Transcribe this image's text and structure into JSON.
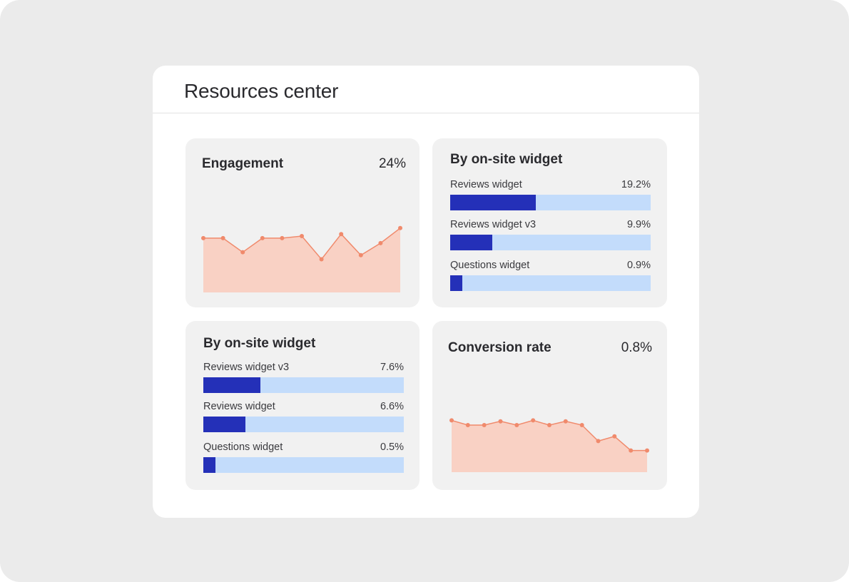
{
  "panel": {
    "title": "Resources center"
  },
  "engagement": {
    "title": "Engagement",
    "value": "24%",
    "chart_data": {
      "type": "area",
      "x": [
        0,
        1,
        2,
        3,
        4,
        5,
        6,
        7,
        8,
        9,
        10
      ],
      "values": [
        54,
        54,
        40,
        54,
        54,
        56,
        33,
        58,
        37,
        49,
        64
      ],
      "ylim": [
        0,
        100
      ],
      "grid": false,
      "colors": {
        "line": "#f08a6c",
        "fill": "#f9d1c4"
      }
    }
  },
  "widgets_top": {
    "title": "By on-site widget",
    "rows": [
      {
        "label": "Reviews widget",
        "pct_text": "19.2%",
        "fill": 0.427
      },
      {
        "label": "Reviews widget v3",
        "pct_text": "9.9%",
        "fill": 0.21
      },
      {
        "label": "Questions widget",
        "pct_text": "0.9%",
        "fill": 0.06
      }
    ]
  },
  "widgets_bottom": {
    "title": "By on-site widget",
    "rows": [
      {
        "label": "Reviews widget v3",
        "pct_text": "7.6%",
        "fill": 0.285
      },
      {
        "label": "Reviews widget",
        "pct_text": "6.6%",
        "fill": 0.21
      },
      {
        "label": "Questions widget",
        "pct_text": "0.5%",
        "fill": 0.06
      }
    ]
  },
  "conversion": {
    "title": "Conversion rate",
    "value": "0.8%",
    "chart_data": {
      "type": "area",
      "x": [
        0,
        1,
        2,
        3,
        4,
        5,
        6,
        7,
        8,
        9,
        10,
        11,
        12
      ],
      "values": [
        55,
        50,
        50,
        54,
        50,
        55,
        50,
        54,
        50,
        33,
        38,
        23,
        23
      ],
      "ylim": [
        0,
        100
      ],
      "grid": false,
      "colors": {
        "line": "#f08a6c",
        "fill": "#f9d1c4"
      }
    }
  },
  "colors": {
    "backdrop": "#ebebeb",
    "card": "#f1f1f1",
    "bar_fill": "#2430b8",
    "bar_track": "#c3dcfb"
  }
}
